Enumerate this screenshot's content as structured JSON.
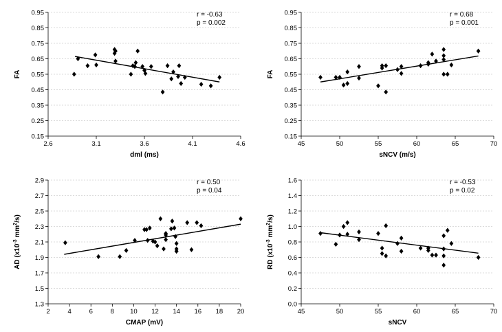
{
  "chart_data": [
    {
      "type": "scatter",
      "xlabel": "dml (ms)",
      "ylabel": "FA",
      "xlim": [
        2.6,
        4.6
      ],
      "ylim": [
        0.15,
        0.95
      ],
      "xticks": [
        "2.6",
        "3.1",
        "3.6",
        "4.1",
        "4.6"
      ],
      "yticks": [
        "0.15",
        "0.25",
        "0.35",
        "0.45",
        "0.55",
        "0.65",
        "0.75",
        "0.85",
        "0.95"
      ],
      "stats": [
        "r = -0.63",
        "p = 0.002"
      ],
      "trendline": {
        "x": [
          2.88,
          4.38
        ],
        "y": [
          0.665,
          0.5
        ]
      },
      "x": [
        2.87,
        2.91,
        3.01,
        3.09,
        3.1,
        3.29,
        3.29,
        3.3,
        3.3,
        3.46,
        3.48,
        3.5,
        3.51,
        3.53,
        3.58,
        3.6,
        3.61,
        3.67,
        3.79,
        3.84,
        3.88,
        3.9,
        3.95,
        3.96,
        3.98,
        4.02,
        4.19,
        4.29,
        4.38
      ],
      "y": [
        0.55,
        0.65,
        0.605,
        0.675,
        0.61,
        0.71,
        0.685,
        0.635,
        0.7,
        0.55,
        0.605,
        0.6,
        0.625,
        0.7,
        0.6,
        0.575,
        0.555,
        0.6,
        0.435,
        0.605,
        0.52,
        0.565,
        0.535,
        0.605,
        0.49,
        0.53,
        0.485,
        0.475,
        0.53
      ]
    },
    {
      "type": "scatter",
      "xlabel": "sNCV  (m/s)",
      "ylabel": "FA",
      "xlim": [
        45,
        70
      ],
      "ylim": [
        0.15,
        0.95
      ],
      "xticks": [
        "45",
        "50",
        "55",
        "60",
        "65",
        "70"
      ],
      "yticks": [
        "0.15",
        "0.25",
        "0.35",
        "0.45",
        "0.55",
        "0.65",
        "0.75",
        "0.85",
        "0.95"
      ],
      "stats": [
        "r = 0.68",
        "p = 0.001"
      ],
      "trendline": {
        "x": [
          47.5,
          68
        ],
        "y": [
          0.5,
          0.668
        ]
      },
      "x": [
        47.5,
        49.5,
        50.0,
        50.5,
        51.0,
        51.0,
        52.5,
        52.5,
        55.0,
        55.5,
        55.5,
        56.0,
        56.0,
        57.5,
        58.0,
        58.0,
        60.5,
        61.5,
        61.5,
        62.0,
        62.5,
        63.5,
        63.5,
        63.5,
        63.5,
        64.0,
        64.5,
        68.0
      ],
      "y": [
        0.53,
        0.53,
        0.53,
        0.48,
        0.565,
        0.49,
        0.6,
        0.525,
        0.475,
        0.59,
        0.605,
        0.605,
        0.435,
        0.58,
        0.555,
        0.6,
        0.605,
        0.615,
        0.625,
        0.68,
        0.635,
        0.71,
        0.67,
        0.645,
        0.55,
        0.55,
        0.61,
        0.7
      ]
    },
    {
      "type": "scatter",
      "xlabel": "CMAP (mV)",
      "ylabel": "AD (x10-3 mm2/s)",
      "xlim": [
        2,
        20
      ],
      "ylim": [
        1.3,
        2.9
      ],
      "xticks": [
        "2",
        "4",
        "6",
        "8",
        "10",
        "12",
        "14",
        "16",
        "18",
        "20"
      ],
      "yticks": [
        "1.3",
        "1.5",
        "1.7",
        "1.9",
        "2.1",
        "2.3",
        "2.5",
        "2.7",
        "2.9"
      ],
      "stats": [
        "r = 0.50",
        "p = 0.04"
      ],
      "trendline": {
        "x": [
          3.5,
          20
        ],
        "y": [
          1.94,
          2.33
        ]
      },
      "x": [
        3.6,
        6.7,
        8.7,
        9.3,
        10.1,
        11.0,
        11.2,
        11.3,
        11.5,
        11.8,
        12.0,
        12.2,
        12.5,
        12.8,
        13.0,
        13.0,
        13.0,
        13.5,
        13.6,
        13.8,
        13.9,
        14.0,
        14.0,
        14.0,
        14.0,
        15.0,
        15.4,
        15.9,
        16.3,
        20.0
      ],
      "y": [
        2.09,
        1.91,
        1.91,
        1.99,
        2.12,
        2.26,
        2.26,
        2.12,
        2.28,
        2.11,
        2.1,
        2.05,
        2.4,
        2.01,
        2.19,
        2.21,
        2.13,
        2.27,
        2.37,
        2.28,
        2.17,
        2.08,
        2.01,
        1.98,
        1.98,
        2.35,
        2.0,
        2.35,
        2.31,
        2.4
      ]
    },
    {
      "type": "scatter",
      "xlabel": "sNCV",
      "ylabel": "RD (x10-3 mm2/s)",
      "xlim": [
        45,
        70
      ],
      "ylim": [
        0.0,
        1.6
      ],
      "xticks": [
        "45",
        "50",
        "55",
        "60",
        "65",
        "70"
      ],
      "yticks": [
        "0.0",
        "0.2",
        "0.4",
        "0.6",
        "0.8",
        "1.0",
        "1.2",
        "1.4",
        "1.6"
      ],
      "stats": [
        "r = -0.53",
        "p = 0.02"
      ],
      "trendline": {
        "x": [
          47.5,
          68
        ],
        "y": [
          0.92,
          0.655
        ]
      },
      "x": [
        47.5,
        49.5,
        50.0,
        50.5,
        51.0,
        51.0,
        52.5,
        52.5,
        55.0,
        55.5,
        55.5,
        56.0,
        56.0,
        57.5,
        58.0,
        58.0,
        60.5,
        61.5,
        61.5,
        62.0,
        62.5,
        63.5,
        63.5,
        63.5,
        63.5,
        64.0,
        64.5,
        68.0
      ],
      "y": [
        0.91,
        0.77,
        0.89,
        1.0,
        1.05,
        0.9,
        0.93,
        0.83,
        0.91,
        0.72,
        0.65,
        1.01,
        0.62,
        0.78,
        0.68,
        0.85,
        0.72,
        0.69,
        0.72,
        0.63,
        0.63,
        0.71,
        0.62,
        0.5,
        0.88,
        0.95,
        0.78,
        0.6
      ]
    }
  ]
}
